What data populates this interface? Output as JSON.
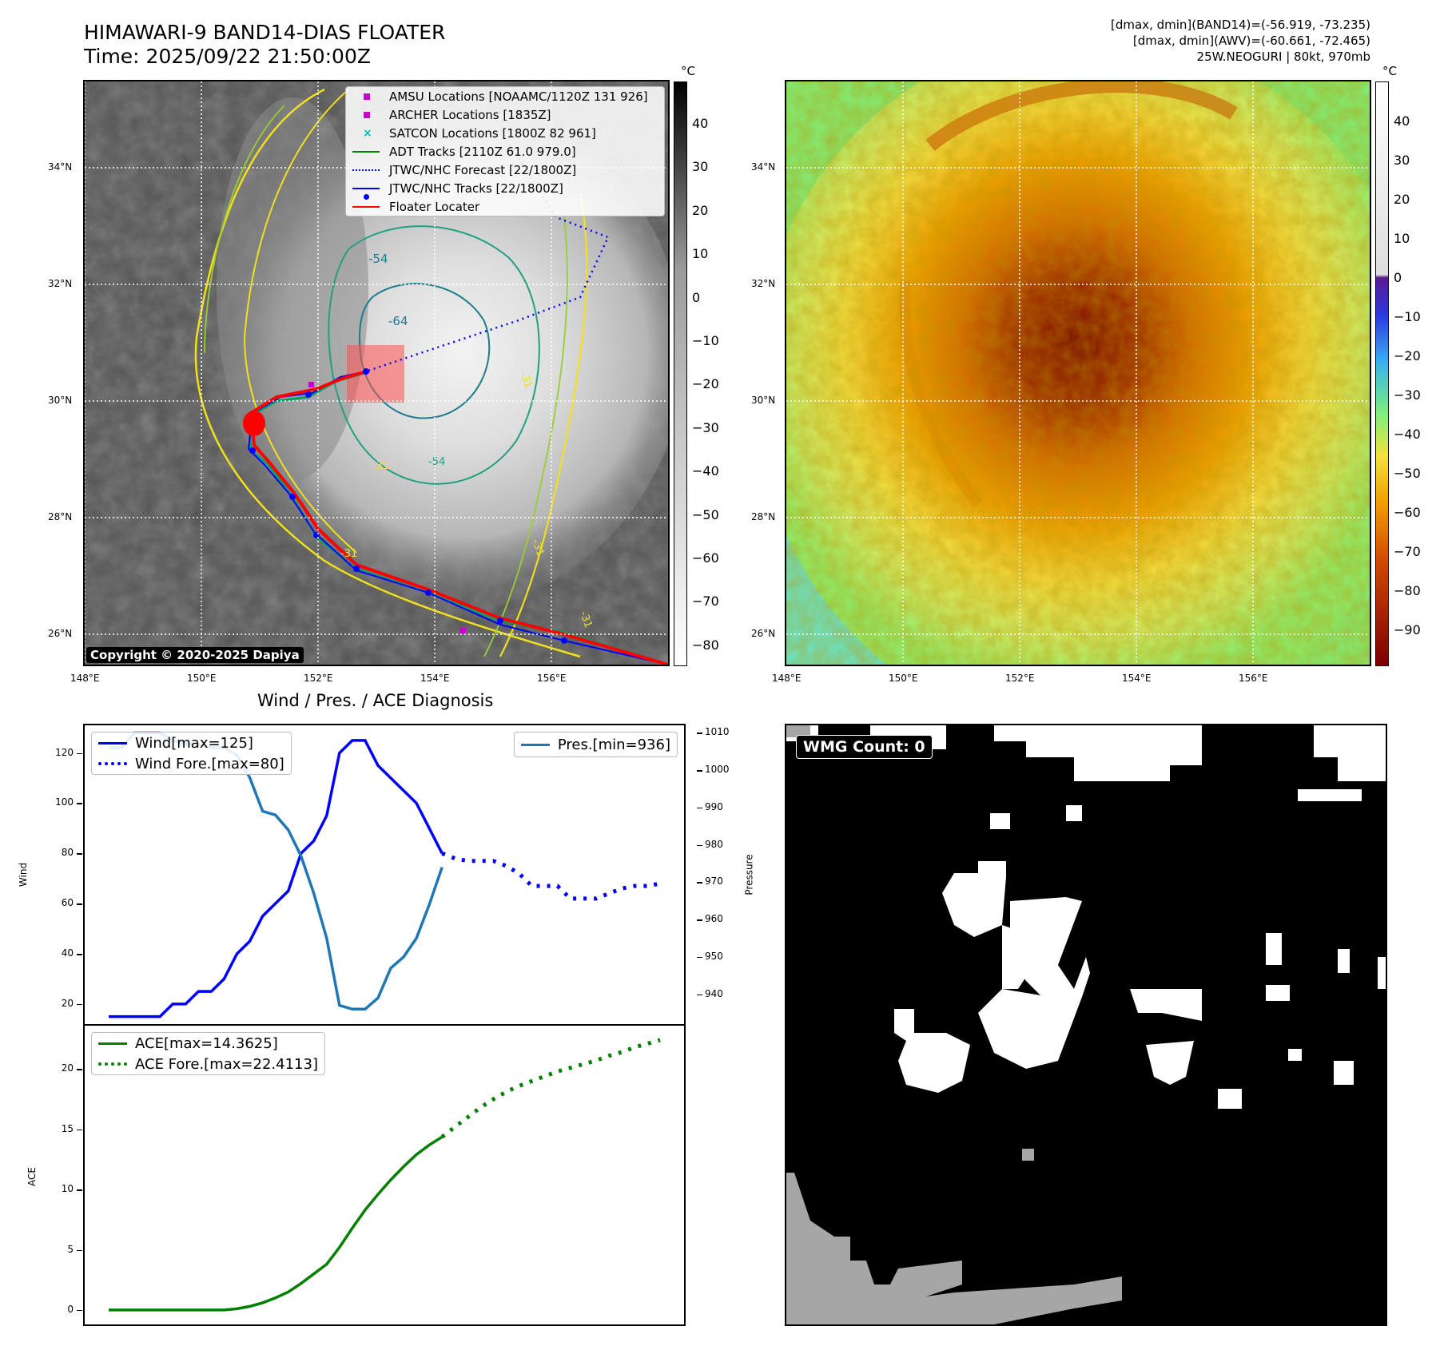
{
  "header": {
    "title_line1": "HIMAWARI-9 BAND14-DIAS FLOATER",
    "title_line2": "Time: 2025/09/22 21:50:00Z",
    "info_line1": "[dmax, dmin](BAND14)=(-56.919, -73.235)",
    "info_line2": "[dmax, dmin](AWV)=(-60.661, -72.465)",
    "info_line3": "25W.NEOGURI | 80kt, 970mb"
  },
  "map": {
    "lat_labels": [
      "34°N",
      "32°N",
      "30°N",
      "28°N",
      "26°N"
    ],
    "lon_labels": [
      "148°E",
      "150°E",
      "152°E",
      "154°E",
      "156°E"
    ],
    "copyright": "Copyright © 2020-2025 Dapiya",
    "contour_labels": [
      "-54",
      "-64",
      "-31",
      "-54",
      "-31",
      "-31",
      "-31",
      "-31"
    ],
    "legend": [
      {
        "label": "AMSU Locations [NOAAMC/1120Z 131 926]",
        "symbol": "square",
        "color": "#cc00cc"
      },
      {
        "label": "ARCHER Locations [1835Z]",
        "symbol": "square",
        "color": "#cc00cc"
      },
      {
        "label": "SATCON Locations [1800Z 82 961]",
        "symbol": "x",
        "color": "#00bbbb"
      },
      {
        "label": "ADT Tracks [2110Z 61.0 979.0]",
        "symbol": "line",
        "color": "#008000"
      },
      {
        "label": "JTWC/NHC Forecast [22/1800Z]",
        "symbol": "dotted",
        "color": "#0000ff"
      },
      {
        "label": "JTWC/NHC Tracks [22/1800Z]",
        "symbol": "linedot",
        "color": "#0000ff"
      },
      {
        "label": "Floater Locater",
        "symbol": "line",
        "color": "#ff0000"
      }
    ],
    "colorbar_unit": "°C",
    "gray_cbar_ticks": [
      "40",
      "30",
      "20",
      "10",
      "0",
      "−10",
      "−20",
      "−30",
      "−40",
      "−50",
      "−60",
      "−70",
      "−80"
    ],
    "color_cbar_ticks": [
      "40",
      "30",
      "20",
      "10",
      "0",
      "−10",
      "−20",
      "−30",
      "−40",
      "−50",
      "−60",
      "−70",
      "−80",
      "−90"
    ]
  },
  "wind_chart": {
    "title": "Wind / Pres. / ACE Diagnosis",
    "ylabel_left": "Wind",
    "ylabel_right": "Pressure",
    "left_ticks": [
      "120",
      "100",
      "80",
      "60",
      "40",
      "20"
    ],
    "right_ticks": [
      "1010",
      "1000",
      "990",
      "980",
      "970",
      "960",
      "950",
      "940"
    ],
    "legend_wind": "Wind[max=125]",
    "legend_wind_fore": "Wind Fore.[max=80]",
    "legend_pres": "Pres.[min=936]"
  },
  "ace_chart": {
    "ylabel": "ACE",
    "ticks": [
      "20",
      "15",
      "10",
      "5",
      "0"
    ],
    "legend_ace": "ACE[max=14.3625]",
    "legend_ace_fore": "ACE Fore.[max=22.4113]"
  },
  "wmg": {
    "label": "WMG Count: 0"
  },
  "colors": {
    "wind": "#0000ff",
    "pressure": "#1f77b4",
    "ace": "#008000"
  },
  "chart_data": [
    {
      "type": "line",
      "title": "Wind / Pres. / ACE Diagnosis",
      "ylabel": "Wind",
      "ylim": [
        12,
        131
      ],
      "series": [
        {
          "name": "Wind[max=125]",
          "values": [
            15,
            15,
            15,
            15,
            15,
            20,
            20,
            25,
            25,
            30,
            40,
            45,
            55,
            60,
            65,
            80,
            85,
            95,
            120,
            125,
            125,
            115,
            110,
            105,
            100,
            90,
            80
          ]
        },
        {
          "name": "Wind Fore.[max=80]",
          "values": [
            80,
            78,
            77,
            77,
            77,
            75,
            72,
            67,
            67,
            67,
            62,
            62,
            62,
            64,
            66,
            67,
            67,
            68
          ]
        }
      ]
    },
    {
      "type": "line",
      "ylabel": "Pressure",
      "ylim": [
        932,
        1012
      ],
      "series": [
        {
          "name": "Pres.[min=936]",
          "values": [
            1006,
            1006,
            1010,
            1010,
            1010,
            1008,
            1007,
            1007,
            1006,
            1006,
            1004,
            998,
            989,
            988,
            984,
            977,
            967,
            955,
            937,
            936,
            936,
            939,
            947,
            950,
            955,
            964,
            974
          ]
        }
      ]
    },
    {
      "type": "line",
      "ylabel": "ACE",
      "ylim": [
        -1.2,
        23.6
      ],
      "series": [
        {
          "name": "ACE[max=14.3625]",
          "values": [
            0,
            0,
            0,
            0,
            0,
            0,
            0,
            0,
            0,
            0,
            0.1,
            0.3,
            0.6,
            1.0,
            1.5,
            2.2,
            3.0,
            3.8,
            5.2,
            6.8,
            8.3,
            9.6,
            10.8,
            11.9,
            12.9,
            13.7,
            14.36
          ]
        },
        {
          "name": "ACE Fore.[max=22.4113]",
          "values": [
            14.36,
            15.2,
            16.0,
            16.8,
            17.5,
            18.1,
            18.6,
            19.0,
            19.4,
            19.8,
            20.1,
            20.4,
            20.7,
            21.1,
            21.4,
            21.8,
            22.1,
            22.41
          ]
        }
      ]
    }
  ]
}
